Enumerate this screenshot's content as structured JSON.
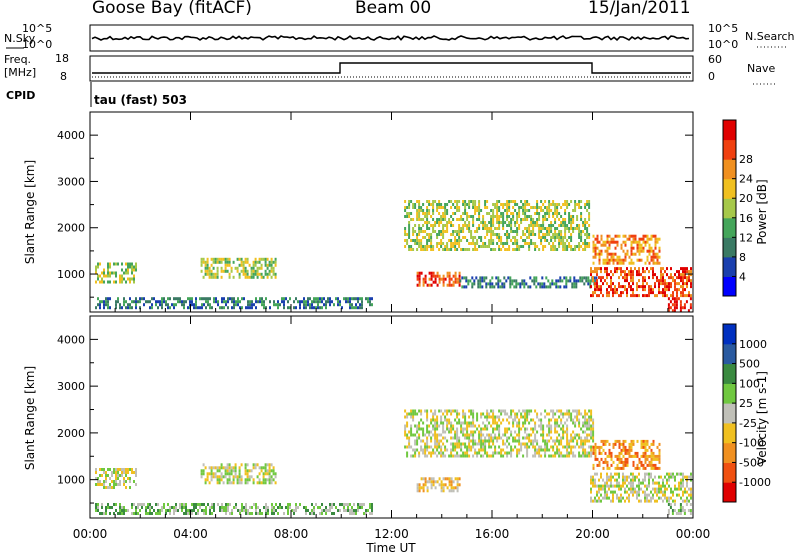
{
  "header": {
    "station": "Goose Bay (fitACF)",
    "beam": "Beam 00",
    "date": "15/Jan/2011"
  },
  "strip_nsky": {
    "left_label": "N.Sky",
    "left_ticks": [
      "10^5",
      "10^0"
    ],
    "right_label": "N.Search",
    "right_ticks": [
      "10^5",
      "10^0"
    ]
  },
  "strip_freq": {
    "left_label_1": "Freq.",
    "left_label_2": "[MHz]",
    "left_ticks": [
      "18",
      "8"
    ],
    "right_label": "Nave",
    "right_ticks": [
      "60",
      "0"
    ],
    "cpid_label": "CPID",
    "mode_text": "tau (fast) 503"
  },
  "chart_data": [
    {
      "type": "heatmap",
      "title": "",
      "xlabel": "Time UT",
      "ylabel": "Slant Range [km]",
      "xlim": [
        0,
        24
      ],
      "ylim": [
        180,
        4500
      ],
      "x_ticks": [
        "00:00",
        "04:00",
        "08:00",
        "12:00",
        "16:00",
        "20:00",
        "00:00"
      ],
      "y_ticks": [
        1000,
        2000,
        3000,
        4000
      ],
      "colorbar": {
        "label": "Power [dB]",
        "ticks": [
          "4",
          "8",
          "12",
          "16",
          "20",
          "24",
          "28"
        ],
        "colors": [
          "#0000ff",
          "#1a3fae",
          "#3a7a64",
          "#44a55a",
          "#a6c84a",
          "#f0c020",
          "#f09020",
          "#f04010",
          "#e00000"
        ]
      },
      "echo_regions": [
        {
          "t0": 0.2,
          "t1": 1.8,
          "r0": 800,
          "r1": 1250,
          "level": 4
        },
        {
          "t0": 4.4,
          "t1": 7.4,
          "r0": 950,
          "r1": 1350,
          "level": 4
        },
        {
          "t0": 0.2,
          "t1": 11.2,
          "r0": 250,
          "r1": 500,
          "level": 2
        },
        {
          "t0": 12.5,
          "t1": 19.9,
          "r0": 1550,
          "r1": 2600,
          "level": 4
        },
        {
          "t0": 13.0,
          "t1": 14.7,
          "r0": 750,
          "r1": 1050,
          "level": 7
        },
        {
          "t0": 14.7,
          "t1": 20.2,
          "r0": 700,
          "r1": 950,
          "level": 2
        },
        {
          "t0": 19.9,
          "t1": 23.9,
          "r0": 550,
          "r1": 1150,
          "level": 7
        },
        {
          "t0": 20.0,
          "t1": 22.7,
          "r0": 1250,
          "r1": 1850,
          "level": 6
        },
        {
          "t0": 23.0,
          "t1": 23.9,
          "r0": 200,
          "r1": 500,
          "level": 8
        }
      ]
    },
    {
      "type": "heatmap",
      "title": "",
      "xlabel": "Time UT",
      "ylabel": "Slant Range [km]",
      "xlim": [
        0,
        24
      ],
      "ylim": [
        180,
        4500
      ],
      "x_ticks": [
        "00:00",
        "04:00",
        "08:00",
        "12:00",
        "16:00",
        "20:00",
        "00:00"
      ],
      "y_ticks": [
        1000,
        2000,
        3000,
        4000
      ],
      "colorbar": {
        "label": "Velocity [m s-1]",
        "ticks": [
          "1000",
          "500",
          "100",
          "25",
          "-25",
          "-100",
          "-500",
          "-1000"
        ],
        "colors": [
          "#0030c0",
          "#2a5aa0",
          "#3a8a40",
          "#70c840",
          "#c0c0b8",
          "#f0c020",
          "#f09020",
          "#f05010",
          "#e00000"
        ]
      },
      "echo_regions": [
        {
          "t0": 0.2,
          "t1": 1.8,
          "r0": 850,
          "r1": 1250,
          "level": 4
        },
        {
          "t0": 4.4,
          "t1": 7.4,
          "r0": 950,
          "r1": 1350,
          "level": 4
        },
        {
          "t0": 0.2,
          "t1": 11.2,
          "r0": 250,
          "r1": 500,
          "level": 3
        },
        {
          "t0": 12.5,
          "t1": 20.0,
          "r0": 1500,
          "r1": 2500,
          "level": 4
        },
        {
          "t0": 13.0,
          "t1": 14.7,
          "r0": 750,
          "r1": 1050,
          "level": 5
        },
        {
          "t0": 20.0,
          "t1": 22.7,
          "r0": 1250,
          "r1": 1850,
          "level": 6
        },
        {
          "t0": 19.9,
          "t1": 23.9,
          "r0": 550,
          "r1": 1150,
          "level": 4
        },
        {
          "t0": 23.0,
          "t1": 23.9,
          "r0": 250,
          "r1": 500,
          "level": 3
        }
      ]
    }
  ]
}
